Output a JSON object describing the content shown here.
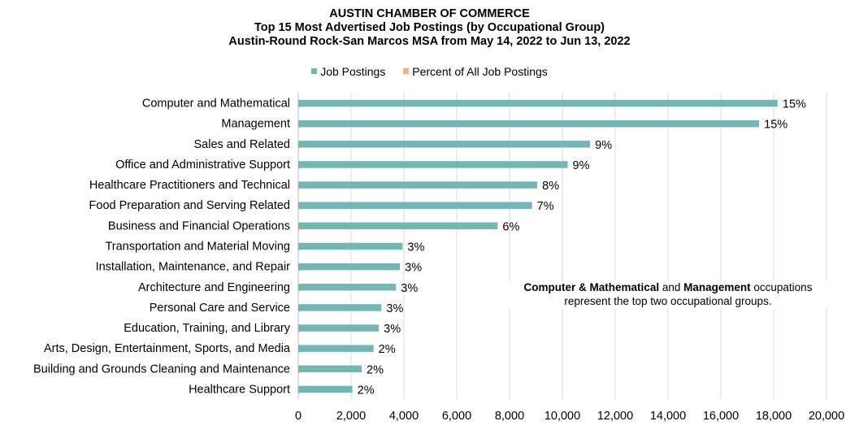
{
  "header": {
    "line1": "AUSTIN CHAMBER OF COMMERCE",
    "line2": "Top 15 Most Advertised Job Postings (by Occupational Group)",
    "line3": "Austin-Round Rock-San Marcos MSA from May 14, 2022 to Jun 13, 2022"
  },
  "legend": {
    "job_postings": "Job Postings",
    "percent": "Percent of All Job Postings"
  },
  "note": {
    "bold1": "Computer & Mathematical",
    "text1": " and ",
    "bold2": "Management",
    "text2": " occupations",
    "line2": "represent the top two occupational groups."
  },
  "colors": {
    "job_postings": "#73B7B5",
    "percent": "#F4B183",
    "grid": "#D9D9D9"
  },
  "chart_data": {
    "type": "bar",
    "orientation": "horizontal",
    "title": "Top 15 Most Advertised Job Postings (by Occupational Group)",
    "categories": [
      "Computer and Mathematical",
      "Management",
      "Sales and Related",
      "Office and Administrative Support",
      "Healthcare Practitioners and Technical",
      "Food Preparation and Serving Related",
      "Business and Financial Operations",
      "Transportation and Material Moving",
      "Installation, Maintenance, and Repair",
      "Architecture and Engineering",
      "Personal Care and Service",
      "Education, Training, and Library",
      "Arts, Design, Entertainment, Sports, and Media",
      "Building and Grounds Cleaning and Maintenance",
      "Healthcare Support"
    ],
    "series": [
      {
        "name": "Job Postings",
        "values": [
          18150,
          17450,
          11050,
          10200,
          9050,
          8850,
          7550,
          3950,
          3850,
          3700,
          3150,
          3050,
          2850,
          2400,
          2050
        ]
      },
      {
        "name": "Percent of All Job Postings",
        "values": [
          15,
          15,
          9,
          9,
          8,
          7,
          6,
          3,
          3,
          3,
          3,
          3,
          2,
          2,
          2
        ],
        "labels": [
          "15%",
          "15%",
          "9%",
          "9%",
          "8%",
          "7%",
          "6%",
          "3%",
          "3%",
          "3%",
          "3%",
          "3%",
          "2%",
          "2%",
          "2%"
        ]
      }
    ],
    "xlim": [
      0,
      20000
    ],
    "xticks": [
      0,
      2000,
      4000,
      6000,
      8000,
      10000,
      12000,
      14000,
      16000,
      18000,
      20000
    ],
    "xtick_labels": [
      "0",
      "2,000",
      "4,000",
      "6,000",
      "8,000",
      "10,000",
      "12,000",
      "14,000",
      "16,000",
      "18,000",
      "20,000"
    ],
    "grid": true,
    "legend_position": "top"
  }
}
